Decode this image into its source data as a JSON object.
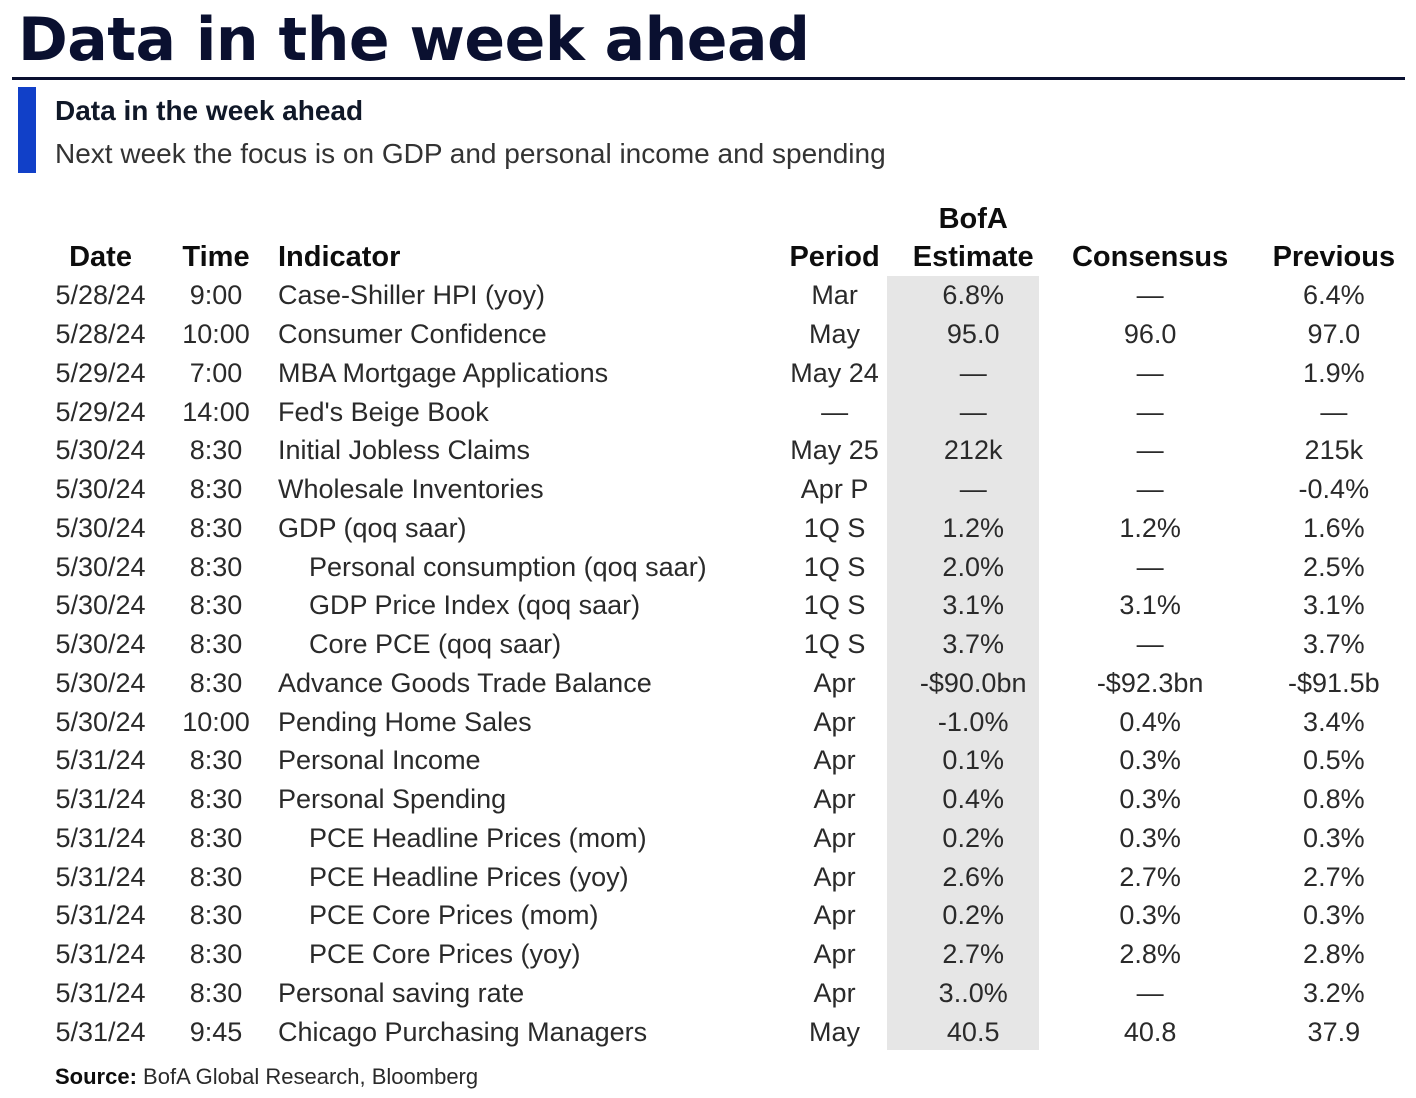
{
  "page_title": "Data in the week ahead",
  "section": {
    "title": "Data in the week ahead",
    "description": "Next week the focus is on GDP and personal income and spending"
  },
  "table": {
    "headers": {
      "date": "Date",
      "time": "Time",
      "indicator": "Indicator",
      "period": "Period",
      "estimate_line1": "BofA",
      "estimate_line2": "Estimate",
      "consensus": "Consensus",
      "previous": "Previous"
    },
    "rows": [
      {
        "date": "5/28/24",
        "time": "9:00",
        "indicator": "Case-Shiller HPI (yoy)",
        "indent": false,
        "period": "Mar",
        "estimate": "6.8%",
        "consensus": "—",
        "previous": "6.4%"
      },
      {
        "date": "5/28/24",
        "time": "10:00",
        "indicator": "Consumer Confidence",
        "indent": false,
        "period": "May",
        "estimate": "95.0",
        "consensus": "96.0",
        "previous": "97.0"
      },
      {
        "date": "5/29/24",
        "time": "7:00",
        "indicator": "MBA Mortgage Applications",
        "indent": false,
        "period": "May 24",
        "estimate": "—",
        "consensus": "—",
        "previous": "1.9%"
      },
      {
        "date": "5/29/24",
        "time": "14:00",
        "indicator": "Fed's Beige Book",
        "indent": false,
        "period": "—",
        "estimate": "—",
        "consensus": "—",
        "previous": "—"
      },
      {
        "date": "5/30/24",
        "time": "8:30",
        "indicator": "Initial Jobless Claims",
        "indent": false,
        "period": "May 25",
        "estimate": "212k",
        "consensus": "—",
        "previous": "215k"
      },
      {
        "date": "5/30/24",
        "time": "8:30",
        "indicator": "Wholesale Inventories",
        "indent": false,
        "period": "Apr P",
        "estimate": "—",
        "consensus": "—",
        "previous": "-0.4%"
      },
      {
        "date": "5/30/24",
        "time": "8:30",
        "indicator": "GDP (qoq saar)",
        "indent": false,
        "period": "1Q S",
        "estimate": "1.2%",
        "consensus": "1.2%",
        "previous": "1.6%"
      },
      {
        "date": "5/30/24",
        "time": "8:30",
        "indicator": "Personal consumption (qoq saar)",
        "indent": true,
        "period": "1Q S",
        "estimate": "2.0%",
        "consensus": "—",
        "previous": "2.5%"
      },
      {
        "date": "5/30/24",
        "time": "8:30",
        "indicator": "GDP Price Index (qoq saar)",
        "indent": true,
        "period": "1Q S",
        "estimate": "3.1%",
        "consensus": "3.1%",
        "previous": "3.1%"
      },
      {
        "date": "5/30/24",
        "time": "8:30",
        "indicator": "Core PCE (qoq saar)",
        "indent": true,
        "period": "1Q S",
        "estimate": "3.7%",
        "consensus": "—",
        "previous": "3.7%"
      },
      {
        "date": "5/30/24",
        "time": "8:30",
        "indicator": "Advance Goods Trade Balance",
        "indent": false,
        "period": "Apr",
        "estimate": "-$90.0bn",
        "consensus": "-$92.3bn",
        "previous": "-$91.5b"
      },
      {
        "date": "5/30/24",
        "time": "10:00",
        "indicator": "Pending Home Sales",
        "indent": false,
        "period": "Apr",
        "estimate": "-1.0%",
        "consensus": "0.4%",
        "previous": "3.4%"
      },
      {
        "date": "5/31/24",
        "time": "8:30",
        "indicator": "Personal Income",
        "indent": false,
        "period": "Apr",
        "estimate": "0.1%",
        "consensus": "0.3%",
        "previous": "0.5%"
      },
      {
        "date": "5/31/24",
        "time": "8:30",
        "indicator": "Personal Spending",
        "indent": false,
        "period": "Apr",
        "estimate": "0.4%",
        "consensus": "0.3%",
        "previous": "0.8%"
      },
      {
        "date": "5/31/24",
        "time": "8:30",
        "indicator": "PCE Headline Prices (mom)",
        "indent": true,
        "period": "Apr",
        "estimate": "0.2%",
        "consensus": "0.3%",
        "previous": "0.3%"
      },
      {
        "date": "5/31/24",
        "time": "8:30",
        "indicator": "PCE Headline Prices (yoy)",
        "indent": true,
        "period": "Apr",
        "estimate": "2.6%",
        "consensus": "2.7%",
        "previous": "2.7%"
      },
      {
        "date": "5/31/24",
        "time": "8:30",
        "indicator": "PCE Core Prices (mom)",
        "indent": true,
        "period": "Apr",
        "estimate": "0.2%",
        "consensus": "0.3%",
        "previous": "0.3%"
      },
      {
        "date": "5/31/24",
        "time": "8:30",
        "indicator": "PCE Core Prices (yoy)",
        "indent": true,
        "period": "Apr",
        "estimate": "2.7%",
        "consensus": "2.8%",
        "previous": "2.8%"
      },
      {
        "date": "5/31/24",
        "time": "8:30",
        "indicator": "Personal saving rate",
        "indent": false,
        "period": "Apr",
        "estimate": "3..0%",
        "consensus": "—",
        "previous": "3.2%"
      },
      {
        "date": "5/31/24",
        "time": "9:45",
        "indicator": "Chicago Purchasing Managers",
        "indent": false,
        "period": "May",
        "estimate": "40.5",
        "consensus": "40.8",
        "previous": "37.9"
      }
    ]
  },
  "source": {
    "label": "Source:",
    "text": "BofA Global Research, Bloomberg"
  },
  "colors": {
    "title": "#0a1030",
    "accent_bar": "#1140c8",
    "estimate_highlight": "#e6e6e6"
  }
}
